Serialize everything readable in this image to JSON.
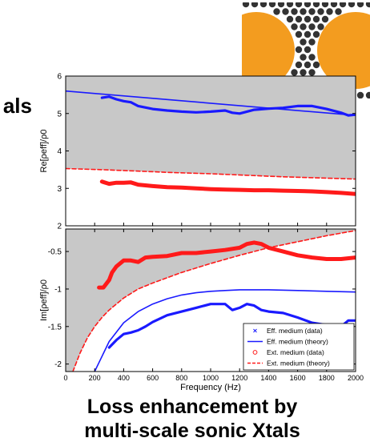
{
  "left_fragment": "als",
  "caption": {
    "line1": "Loss enhancement by",
    "line2": "multi-scale sonic Xtals"
  },
  "inset": {
    "description_icon": "sonic-crystal-inset",
    "colors": {
      "cylinder": "#f39c1f",
      "rod": "#333333",
      "background": "#ffffff"
    }
  },
  "colors": {
    "blue": "#1a1aff",
    "red": "#ff1a1a",
    "shade": "#c8c8c8"
  },
  "chart_data": [
    {
      "type": "line",
      "ylabel": "Re[ρeff]/ρ0",
      "xlim": [
        0,
        2000
      ],
      "ylim": [
        2,
        6
      ],
      "yticks": [
        "2",
        "3",
        "4",
        "5",
        "6"
      ],
      "series": [
        {
          "name": "Eff. medium (data)",
          "x": [
            250,
            300,
            350,
            400,
            450,
            500,
            600,
            700,
            800,
            900,
            1000,
            1100,
            1150,
            1200,
            1250,
            1300,
            1400,
            1500,
            1600,
            1700,
            1800,
            1900,
            1950,
            2000
          ],
          "y": [
            5.42,
            5.45,
            5.38,
            5.33,
            5.3,
            5.2,
            5.12,
            5.08,
            5.05,
            5.03,
            5.05,
            5.08,
            5.02,
            5.0,
            5.05,
            5.1,
            5.13,
            5.15,
            5.2,
            5.2,
            5.12,
            5.02,
            4.95,
            4.97
          ]
        },
        {
          "name": "Eff. medium (theory)",
          "x": [
            0,
            2000
          ],
          "y": [
            5.6,
            4.95
          ]
        },
        {
          "name": "Ext. medium (data)",
          "x": [
            250,
            300,
            350,
            400,
            450,
            500,
            600,
            700,
            800,
            900,
            1000,
            1100,
            1200,
            1300,
            1400,
            1500,
            1600,
            1700,
            1800,
            1900,
            2000
          ],
          "y": [
            3.18,
            3.12,
            3.15,
            3.15,
            3.16,
            3.1,
            3.06,
            3.03,
            3.02,
            3.0,
            2.98,
            2.97,
            2.96,
            2.95,
            2.95,
            2.94,
            2.93,
            2.92,
            2.9,
            2.88,
            2.85
          ]
        },
        {
          "name": "Ext. medium (theory)",
          "x": [
            0,
            250,
            500,
            750,
            1000,
            1250,
            1500,
            1750,
            2000
          ],
          "y": [
            3.53,
            3.5,
            3.46,
            3.42,
            3.39,
            3.35,
            3.31,
            3.28,
            3.25
          ]
        }
      ],
      "shading": {
        "description": "region above Ext. medium (theory) curve shaded gray"
      }
    },
    {
      "type": "line",
      "ylabel": "Im[ρeff]/ρ0",
      "xlabel": "Frequency (Hz)",
      "xlim": [
        0,
        2000
      ],
      "ylim": [
        -2.1,
        -0.2
      ],
      "xticks": [
        "0",
        "200",
        "400",
        "600",
        "800",
        "1000",
        "1200",
        "1400",
        "1600",
        "1800",
        "2000"
      ],
      "yticks": [
        "-0.5",
        "-1",
        "-1.5",
        "-2"
      ],
      "legend_position": "bottom-right",
      "legend": [
        {
          "label": "Eff. medium (data)",
          "symbol": "x",
          "color": "#1a1aff"
        },
        {
          "label": "Eff. medium (theory)",
          "symbol": "line",
          "color": "#1a1aff"
        },
        {
          "label": "Ext. medium (data)",
          "symbol": "o",
          "color": "#ff1a1a"
        },
        {
          "label": "Ext. medium (theory)",
          "symbol": "dash",
          "color": "#ff1a1a"
        }
      ],
      "series": [
        {
          "name": "Eff. medium (data)",
          "x": [
            300,
            350,
            400,
            450,
            500,
            550,
            600,
            700,
            800,
            900,
            1000,
            1100,
            1150,
            1200,
            1250,
            1300,
            1350,
            1400,
            1500,
            1600,
            1700,
            1800,
            1900,
            1950,
            2000
          ],
          "y": [
            -1.78,
            -1.68,
            -1.6,
            -1.58,
            -1.55,
            -1.5,
            -1.44,
            -1.35,
            -1.3,
            -1.25,
            -1.2,
            -1.2,
            -1.28,
            -1.25,
            -1.2,
            -1.22,
            -1.28,
            -1.3,
            -1.32,
            -1.38,
            -1.45,
            -1.48,
            -1.5,
            -1.42,
            -1.42
          ]
        },
        {
          "name": "Eff. medium (theory)",
          "x": [
            200,
            300,
            400,
            500,
            600,
            700,
            800,
            900,
            1000,
            1100,
            1200,
            1300,
            1400,
            1600,
            1800,
            2000
          ],
          "y": [
            -2.1,
            -1.7,
            -1.45,
            -1.3,
            -1.2,
            -1.13,
            -1.08,
            -1.05,
            -1.03,
            -1.02,
            -1.01,
            -1.01,
            -1.01,
            -1.02,
            -1.03,
            -1.04
          ]
        },
        {
          "name": "Ext. medium (data)",
          "x": [
            230,
            260,
            300,
            320,
            350,
            400,
            450,
            500,
            550,
            600,
            700,
            800,
            900,
            1000,
            1100,
            1200,
            1250,
            1300,
            1350,
            1400,
            1500,
            1600,
            1700,
            1800,
            1900,
            2000
          ],
          "y": [
            -0.98,
            -0.98,
            -0.88,
            -0.78,
            -0.7,
            -0.62,
            -0.62,
            -0.64,
            -0.58,
            -0.57,
            -0.56,
            -0.52,
            -0.52,
            -0.5,
            -0.48,
            -0.45,
            -0.4,
            -0.38,
            -0.4,
            -0.45,
            -0.5,
            -0.55,
            -0.58,
            -0.6,
            -0.6,
            -0.58
          ]
        },
        {
          "name": "Ext. medium (theory)",
          "x": [
            50,
            100,
            150,
            200,
            250,
            300,
            400,
            500,
            600,
            800,
            1000,
            1200,
            1400,
            1600,
            1800,
            2000
          ],
          "y": [
            -2.1,
            -1.85,
            -1.65,
            -1.5,
            -1.38,
            -1.28,
            -1.12,
            -1.0,
            -0.92,
            -0.78,
            -0.66,
            -0.55,
            -0.45,
            -0.37,
            -0.29,
            -0.22
          ]
        }
      ],
      "shading": {
        "description": "region above Ext. medium (theory) curve shaded gray"
      }
    }
  ]
}
